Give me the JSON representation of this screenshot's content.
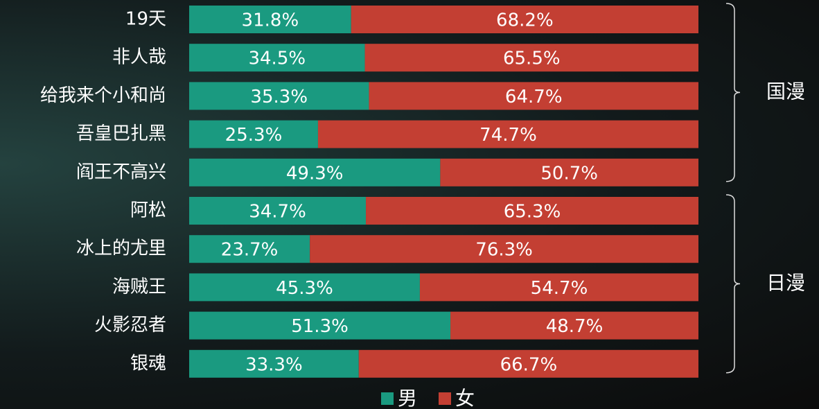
{
  "chart_data": {
    "type": "stacked_bar_horizontal",
    "categories": [
      "19天",
      "非人哉",
      "给我来个小和尚",
      "吾皇巴扎黑",
      "阎王不高兴",
      "阿松",
      "冰上的尤里",
      "海贼王",
      "火影忍者",
      "银魂"
    ],
    "series": [
      {
        "name": "男",
        "color": "#1a9a80",
        "values": [
          31.8,
          34.5,
          35.3,
          25.3,
          49.3,
          34.7,
          23.7,
          45.3,
          51.3,
          33.3
        ],
        "value_labels": [
          "31.8%",
          "34.5%",
          "35.3%",
          "25.3%",
          "49.3%",
          "34.7%",
          "23.7%",
          "45.3%",
          "51.3%",
          "33.3%"
        ]
      },
      {
        "name": "女",
        "color": "#c33f33",
        "values": [
          68.2,
          65.5,
          64.7,
          74.7,
          50.7,
          65.3,
          76.3,
          54.7,
          48.7,
          66.7
        ],
        "value_labels": [
          "68.2%",
          "65.5%",
          "64.7%",
          "74.7%",
          "50.7%",
          "65.3%",
          "76.3%",
          "54.7%",
          "48.7%",
          "66.7%"
        ]
      }
    ],
    "xlim": [
      0,
      100
    ],
    "annotations": [
      "国漫",
      "日漫"
    ],
    "legend": "bottom"
  }
}
